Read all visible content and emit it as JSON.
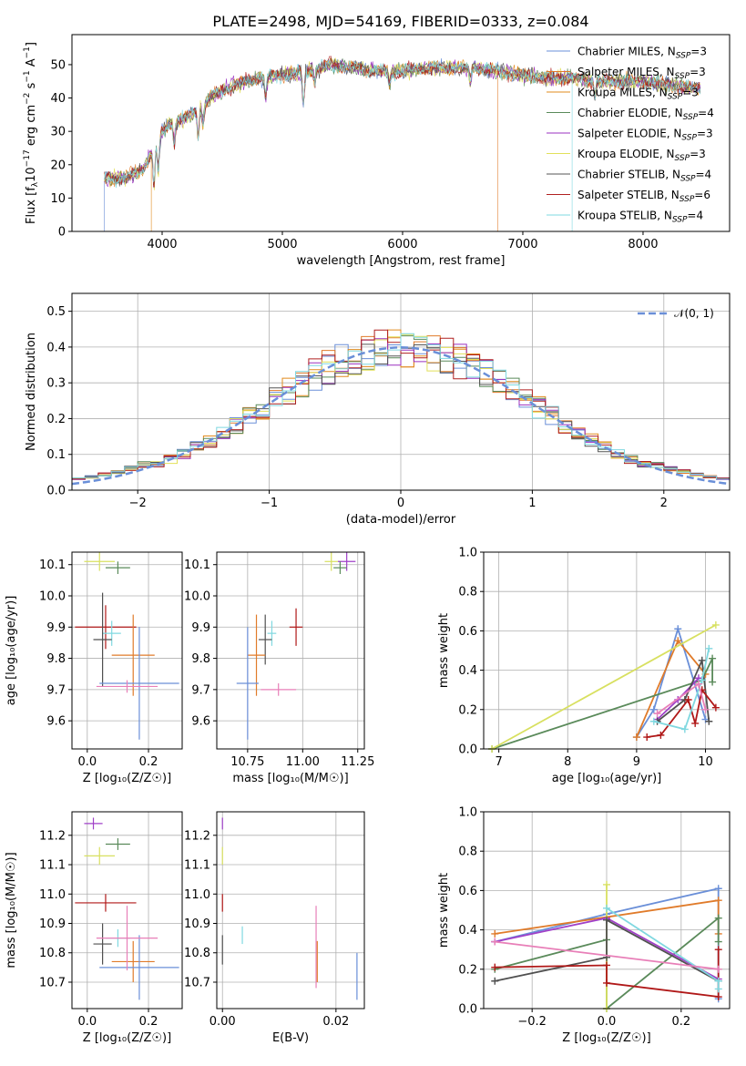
{
  "colors": [
    "#6a8fd8",
    "#e07b2a",
    "#e18b1e",
    "#5a8a5a",
    "#9b30c0",
    "#e2e05a",
    "#555555",
    "#b02020",
    "#7fd8e0"
  ],
  "colors_ext": [
    "#6a8fd8",
    "#e07b2a",
    "#d8792a",
    "#5a8a5a",
    "#a040c8",
    "#d8e060",
    "#505050",
    "#b01818",
    "#80d8e0",
    "#e87fb8"
  ],
  "title": "PLATE=2498, MJD=54169, FIBERID=0333, z=0.084",
  "chart_data": [
    {
      "id": "spectrum",
      "type": "line",
      "title": "PLATE=2498, MJD=54169, FIBERID=0333, z=0.084",
      "xlabel": "wavelength [Angstrom, rest frame]",
      "ylabel_parts": [
        "Flux [f",
        "λ",
        "10",
        "−17",
        " erg cm",
        "−2",
        " s",
        "−1",
        " A",
        "−1",
        "]"
      ],
      "xlim": [
        3250,
        8720
      ],
      "ylim": [
        0,
        59
      ],
      "xticks": [
        4000,
        5000,
        6000,
        7000,
        8000
      ],
      "yticks": [
        0,
        10,
        20,
        30,
        40,
        50
      ],
      "legend": [
        {
          "name": "Chabrier MILES, N",
          "sub": "SSP",
          "tail": "=3"
        },
        {
          "name": "Salpeter MILES, N",
          "sub": "SSP",
          "tail": "=3"
        },
        {
          "name": "Kroupa MILES, N",
          "sub": "SSP",
          "tail": "=3"
        },
        {
          "name": "Chabrier ELODIE, N",
          "sub": "SSP",
          "tail": "=4"
        },
        {
          "name": "Salpeter ELODIE, N",
          "sub": "SSP",
          "tail": "=3"
        },
        {
          "name": "Kroupa ELODIE, N",
          "sub": "SSP",
          "tail": "=3"
        },
        {
          "name": "Chabrier STELIB, N",
          "sub": "SSP",
          "tail": "=4"
        },
        {
          "name": "Salpeter STELIB, N",
          "sub": "SSP",
          "tail": "=6"
        },
        {
          "name": "Kroupa STELIB, N",
          "sub": "SSP",
          "tail": "=4"
        }
      ],
      "continuum": [
        [
          3520,
          16
        ],
        [
          3700,
          16
        ],
        [
          3850,
          19
        ],
        [
          3950,
          27
        ],
        [
          4050,
          32
        ],
        [
          4200,
          34
        ],
        [
          4400,
          40
        ],
        [
          4600,
          44
        ],
        [
          4800,
          46
        ],
        [
          5000,
          47
        ],
        [
          5200,
          48
        ],
        [
          5400,
          50
        ],
        [
          5600,
          49
        ],
        [
          5800,
          48
        ],
        [
          6000,
          48
        ],
        [
          6200,
          49
        ],
        [
          6400,
          49
        ],
        [
          6600,
          49
        ],
        [
          6800,
          48
        ],
        [
          7000,
          47
        ],
        [
          7200,
          46
        ],
        [
          7400,
          46
        ],
        [
          7600,
          45
        ],
        [
          7800,
          45
        ],
        [
          8000,
          45
        ],
        [
          8200,
          44
        ],
        [
          8400,
          43
        ],
        [
          8480,
          43
        ]
      ],
      "absorption": [
        [
          3933,
          12
        ],
        [
          3968,
          10
        ],
        [
          4101,
          6
        ],
        [
          4300,
          8
        ],
        [
          4340,
          6
        ],
        [
          4861,
          6
        ],
        [
          5175,
          10
        ],
        [
          5270,
          4
        ],
        [
          5892,
          4
        ],
        [
          6563,
          4
        ],
        [
          7600,
          4
        ]
      ],
      "drops": [
        [
          3520,
          0,
          0
        ],
        [
          3910,
          2,
          6
        ],
        [
          6790,
          1,
          3
        ],
        [
          7410,
          8,
          1
        ]
      ],
      "legend_pos": "upper right"
    },
    {
      "id": "residuals",
      "type": "histogram",
      "xlabel": "(data-model)/error",
      "ylabel": "Normed distribution",
      "xlim": [
        -2.5,
        2.5
      ],
      "ylim": [
        0,
        0.55
      ],
      "xticks": [
        -2,
        -1,
        0,
        1,
        2
      ],
      "xtick_labels": [
        "−2",
        "−1",
        "0",
        "1",
        "2"
      ],
      "yticks": [
        0,
        0.1,
        0.2,
        0.3,
        0.4,
        0.5
      ],
      "ytick_labels": [
        "0.0",
        "0.1",
        "0.2",
        "0.3",
        "0.4",
        "0.5"
      ],
      "bin_width": 0.1,
      "reference_curve": "N(0,1)",
      "legend": "𝒩(0, 1)",
      "legend_pos": "upper right"
    },
    {
      "id": "age_vs_Z",
      "type": "scatter",
      "xlabel": "Z [log₁₀(Z/Z☉)]",
      "ylabel": "age  [log₁₀(age/yr)]",
      "xlim": [
        -0.05,
        0.31
      ],
      "ylim": [
        9.51,
        10.14
      ],
      "xticks": [
        0.0,
        0.2
      ],
      "xtick_labels": [
        "0.0",
        "0.2"
      ],
      "yticks": [
        9.6,
        9.7,
        9.8,
        9.9,
        10.0,
        10.1
      ],
      "ytick_labels": [
        "9.6",
        "9.7",
        "9.8",
        "9.9",
        "10.0",
        "10.1"
      ],
      "points": [
        {
          "x": 0.04,
          "y": 10.11,
          "xe": 0.05,
          "ye": 0.03,
          "c": 5
        },
        {
          "x": 0.1,
          "y": 10.09,
          "xe": 0.04,
          "ye": 0.02,
          "c": 3
        },
        {
          "x": 0.06,
          "y": 9.9,
          "xe": 0.1,
          "ye": 0.07,
          "c": 7
        },
        {
          "x": 0.08,
          "y": 9.88,
          "xe": 0.03,
          "ye": 0.04,
          "c": 8
        },
        {
          "x": 0.05,
          "y": 9.86,
          "xe": 0.03,
          "ye": 0.15,
          "c": 6
        },
        {
          "x": 0.15,
          "y": 9.81,
          "xe": 0.07,
          "ye": 0.13,
          "c": 1
        },
        {
          "x": 0.17,
          "y": 9.72,
          "xe": 0.13,
          "ye": 0.18,
          "c": 0
        },
        {
          "x": 0.13,
          "y": 9.71,
          "xe": 0.1,
          "ye": 0.02,
          "c": 9
        }
      ]
    },
    {
      "id": "age_vs_mass",
      "type": "scatter",
      "xlabel": "mass [log₁₀(M/M☉)]",
      "xlim": [
        10.61,
        11.28
      ],
      "ylim": [
        9.51,
        10.14
      ],
      "xticks": [
        10.75,
        11.0,
        11.25
      ],
      "xtick_labels": [
        "10.75",
        "11.00",
        "11.25"
      ],
      "yticks": [
        9.6,
        9.7,
        9.8,
        9.9,
        10.0,
        10.1
      ],
      "ytick_labels": [
        "9.6",
        "9.7",
        "9.8",
        "9.9",
        "10.0",
        "10.1"
      ],
      "points": [
        {
          "x": 11.13,
          "y": 10.11,
          "xe": 0.03,
          "ye": 0.03,
          "c": 5
        },
        {
          "x": 11.2,
          "y": 10.11,
          "xe": 0.04,
          "ye": 0.03,
          "c": 4
        },
        {
          "x": 11.17,
          "y": 10.09,
          "xe": 0.03,
          "ye": 0.02,
          "c": 3
        },
        {
          "x": 10.97,
          "y": 9.9,
          "xe": 0.03,
          "ye": 0.06,
          "c": 7
        },
        {
          "x": 10.86,
          "y": 9.88,
          "xe": 0.02,
          "ye": 0.04,
          "c": 8
        },
        {
          "x": 10.83,
          "y": 9.86,
          "xe": 0.03,
          "ye": 0.08,
          "c": 6
        },
        {
          "x": 10.79,
          "y": 9.81,
          "xe": 0.04,
          "ye": 0.13,
          "c": 1
        },
        {
          "x": 10.75,
          "y": 9.72,
          "xe": 0.05,
          "ye": 0.18,
          "c": 0
        },
        {
          "x": 10.89,
          "y": 9.7,
          "xe": 0.08,
          "ye": 0.02,
          "c": 9
        }
      ]
    },
    {
      "id": "weight_vs_age",
      "type": "line",
      "xlabel": "age  [log₁₀(age/yr)]",
      "ylabel": "mass weight",
      "xlim": [
        6.78,
        10.35
      ],
      "ylim": [
        0,
        1.0
      ],
      "xticks": [
        7,
        8,
        9,
        10
      ],
      "xtick_labels": [
        "7",
        "8",
        "9",
        "10"
      ],
      "yticks": [
        0,
        0.2,
        0.4,
        0.6,
        0.8,
        1.0
      ],
      "ytick_labels": [
        "0.0",
        "0.2",
        "0.4",
        "0.6",
        "0.8",
        "1.0"
      ],
      "series": [
        {
          "c": 0,
          "points": [
            [
              9.0,
              0.06
            ],
            [
              9.25,
              0.2
            ],
            [
              9.6,
              0.61
            ],
            [
              10.0,
              0.15
            ]
          ]
        },
        {
          "c": 1,
          "points": [
            [
              9.0,
              0.06
            ],
            [
              9.6,
              0.55
            ],
            [
              10.0,
              0.38
            ]
          ]
        },
        {
          "c": 3,
          "points": [
            [
              6.9,
              0.0
            ],
            [
              9.95,
              0.35
            ],
            [
              10.1,
              0.46
            ],
            [
              10.1,
              0.34
            ]
          ]
        },
        {
          "c": 4,
          "points": [
            [
              9.3,
              0.15
            ],
            [
              9.6,
              0.25
            ],
            [
              9.9,
              0.36
            ]
          ]
        },
        {
          "c": 5,
          "points": [
            [
              6.9,
              0.0
            ],
            [
              10.15,
              0.63
            ]
          ]
        },
        {
          "c": 6,
          "points": [
            [
              9.3,
              0.14
            ],
            [
              9.7,
              0.25
            ],
            [
              9.95,
              0.45
            ],
            [
              10.05,
              0.14
            ]
          ]
        },
        {
          "c": 7,
          "points": [
            [
              9.15,
              0.06
            ],
            [
              9.35,
              0.07
            ],
            [
              9.75,
              0.25
            ],
            [
              9.85,
              0.13
            ],
            [
              9.95,
              0.3
            ],
            [
              10.15,
              0.21
            ]
          ]
        },
        {
          "c": 8,
          "points": [
            [
              9.25,
              0.14
            ],
            [
              9.7,
              0.1
            ],
            [
              9.95,
              0.35
            ],
            [
              10.05,
              0.51
            ]
          ]
        },
        {
          "c": 9,
          "points": [
            [
              9.3,
              0.18
            ],
            [
              9.9,
              0.33
            ],
            [
              10.0,
              0.2
            ]
          ]
        }
      ]
    },
    {
      "id": "mass_vs_Z",
      "type": "scatter",
      "xlabel": "Z [log₁₀(Z/Z☉)]",
      "ylabel": "mass [log₁₀(M/M☉)]",
      "xlim": [
        -0.05,
        0.31
      ],
      "ylim": [
        10.61,
        11.28
      ],
      "xticks": [
        0.0,
        0.2
      ],
      "xtick_labels": [
        "0.0",
        "0.2"
      ],
      "yticks": [
        10.7,
        10.8,
        10.9,
        11.0,
        11.1,
        11.2
      ],
      "ytick_labels": [
        "10.7",
        "10.8",
        "10.9",
        "11.0",
        "11.1",
        "11.2"
      ],
      "points": [
        {
          "x": 0.02,
          "y": 11.24,
          "xe": 0.03,
          "ye": 0.02,
          "c": 4
        },
        {
          "x": 0.04,
          "y": 11.13,
          "xe": 0.05,
          "ye": 0.03,
          "c": 5
        },
        {
          "x": 0.1,
          "y": 11.17,
          "xe": 0.04,
          "ye": 0.02,
          "c": 3
        },
        {
          "x": 0.06,
          "y": 10.97,
          "xe": 0.1,
          "ye": 0.03,
          "c": 7
        },
        {
          "x": 0.1,
          "y": 10.85,
          "xe": 0.04,
          "ye": 0.03,
          "c": 8
        },
        {
          "x": 0.05,
          "y": 10.83,
          "xe": 0.03,
          "ye": 0.07,
          "c": 6
        },
        {
          "x": 0.15,
          "y": 10.77,
          "xe": 0.07,
          "ye": 0.07,
          "c": 1
        },
        {
          "x": 0.17,
          "y": 10.75,
          "xe": 0.13,
          "ye": 0.11,
          "c": 0
        },
        {
          "x": 0.13,
          "y": 10.85,
          "xe": 0.1,
          "ye": 0.11,
          "c": 9
        }
      ]
    },
    {
      "id": "mass_vs_ebv",
      "type": "scatter",
      "xlabel": "E(B-V)",
      "xlim": [
        -0.001,
        0.025
      ],
      "ylim": [
        10.61,
        11.28
      ],
      "xticks": [
        0.0,
        0.02
      ],
      "xtick_labels": [
        "0.00",
        "0.02"
      ],
      "yticks": [
        10.7,
        10.8,
        10.9,
        11.0,
        11.1,
        11.2
      ],
      "ytick_labels": [
        "10.7",
        "10.8",
        "10.9",
        "11.0",
        "11.1",
        "11.2"
      ],
      "points": [
        {
          "x": 0.0,
          "y": 11.24,
          "ye": 0.02,
          "c": 4
        },
        {
          "x": 0.0,
          "y": 11.13,
          "ye": 0.03,
          "c": 5
        },
        {
          "x": 0.0,
          "y": 10.97,
          "ye": 0.03,
          "c": 7
        },
        {
          "x": 0.0,
          "y": 10.81,
          "ye": 0.05,
          "c": 6
        },
        {
          "x": 0.0035,
          "y": 10.86,
          "ye": 0.03,
          "c": 8
        },
        {
          "x": 0.0165,
          "y": 10.82,
          "ye": 0.14,
          "c": 9
        },
        {
          "x": 0.0167,
          "y": 10.77,
          "ye": 0.07,
          "c": 1
        },
        {
          "x": 0.0237,
          "y": 10.72,
          "ye": 0.08,
          "c": 0
        }
      ]
    },
    {
      "id": "weight_vs_Z",
      "type": "line",
      "xlabel": "Z [log₁₀(Z/Z☉)]",
      "ylabel": "mass weight",
      "xlim": [
        -0.33,
        0.33
      ],
      "ylim": [
        0,
        1.0
      ],
      "xticks": [
        -0.2,
        0.0,
        0.2
      ],
      "xtick_labels": [
        "−0.2",
        "0.0",
        "0.2"
      ],
      "yticks": [
        0,
        0.2,
        0.4,
        0.6,
        0.8,
        1.0
      ],
      "ytick_labels": [
        "0.0",
        "0.2",
        "0.4",
        "0.6",
        "0.8",
        "1.0"
      ],
      "series": [
        {
          "c": 0,
          "points": [
            [
              -0.3,
              0.34
            ],
            [
              0.0,
              0.48
            ],
            [
              0.3,
              0.61
            ],
            [
              0.3,
              0.05
            ]
          ]
        },
        {
          "c": 1,
          "points": [
            [
              -0.3,
              0.38
            ],
            [
              0.3,
              0.55
            ],
            [
              0.3,
              0.38
            ]
          ]
        },
        {
          "c": 3,
          "points": [
            [
              -0.3,
              0.2
            ],
            [
              0.0,
              0.35
            ],
            [
              0.0,
              0.0
            ],
            [
              0.3,
              0.46
            ],
            [
              0.3,
              0.34
            ]
          ]
        },
        {
          "c": 4,
          "points": [
            [
              -0.3,
              0.34
            ],
            [
              0.0,
              0.46
            ],
            [
              0.3,
              0.15
            ]
          ]
        },
        {
          "c": 5,
          "points": [
            [
              0.0,
              0.0
            ],
            [
              0.0,
              0.63
            ]
          ]
        },
        {
          "c": 6,
          "points": [
            [
              -0.3,
              0.14
            ],
            [
              0.0,
              0.26
            ],
            [
              0.0,
              0.45
            ],
            [
              0.3,
              0.14
            ]
          ]
        },
        {
          "c": 7,
          "points": [
            [
              -0.3,
              0.21
            ],
            [
              0.0,
              0.22
            ],
            [
              0.0,
              0.13
            ],
            [
              0.3,
              0.06
            ],
            [
              0.3,
              0.3
            ]
          ]
        },
        {
          "c": 8,
          "points": [
            [
              0.0,
              0.51
            ],
            [
              0.3,
              0.14
            ],
            [
              0.3,
              0.1
            ]
          ]
        },
        {
          "c": 9,
          "points": [
            [
              -0.3,
              0.34
            ],
            [
              0.3,
              0.2
            ]
          ]
        }
      ]
    }
  ]
}
